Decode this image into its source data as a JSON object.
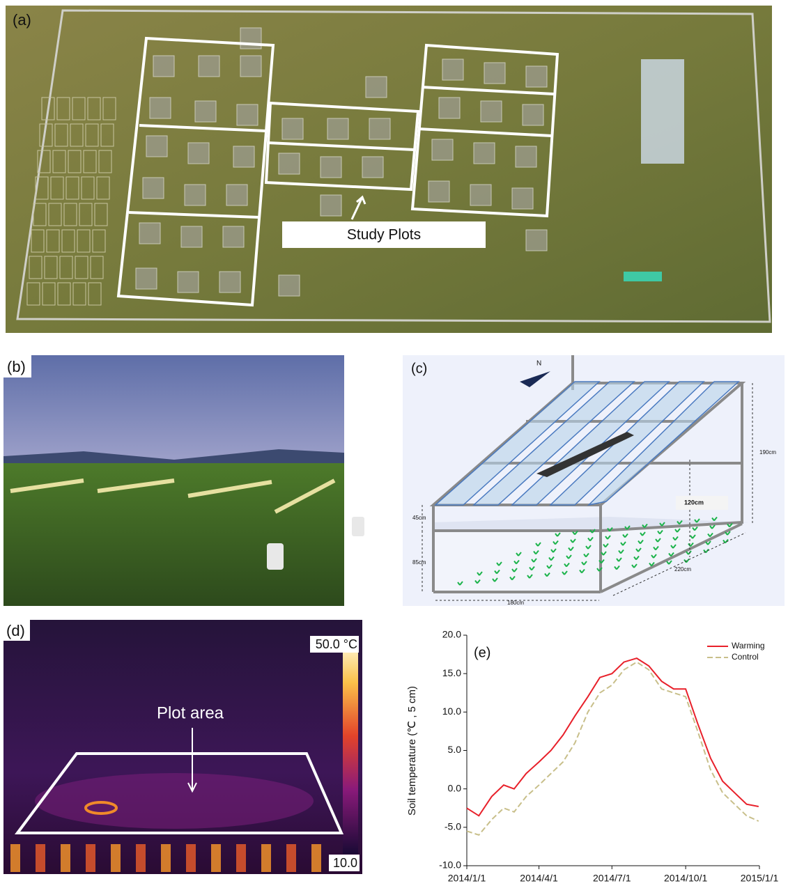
{
  "panels": {
    "a": {
      "label": "(a)",
      "annotation": "Study Plots"
    },
    "b": {
      "label": "(b)"
    },
    "c": {
      "label": "(c)",
      "north": "N",
      "dimensions": [
        "190cm",
        "120cm",
        "45cm",
        "85cm",
        "220cm",
        "180cm"
      ]
    },
    "d": {
      "label": "(d)",
      "annotation": "Plot area",
      "scale_max": "50.0 °C",
      "scale_min": "10.0"
    }
  },
  "chart_data": {
    "type": "line",
    "label": "(e)",
    "y_label": "Soil temperature (℃ , 5 cm)",
    "x": [
      "2014/1/1",
      "2014/1/16",
      "2014/2/1",
      "2014/2/16",
      "2014/3/1",
      "2014/3/16",
      "2014/4/1",
      "2014/4/16",
      "2014/5/1",
      "2014/5/16",
      "2014/6/1",
      "2014/6/16",
      "2014/7/1",
      "2014/7/16",
      "2014/8/1",
      "2014/8/16",
      "2014/9/1",
      "2014/9/16",
      "2014/10/1",
      "2014/10/16",
      "2014/11/1",
      "2014/11/16",
      "2014/12/1",
      "2014/12/16",
      "2014/12/31"
    ],
    "series": [
      {
        "name": "Warming",
        "color": "#e8202a",
        "style": "solid",
        "values": [
          -2.5,
          -3.5,
          -1.0,
          0.5,
          0.0,
          2.0,
          3.5,
          5.0,
          7.0,
          9.5,
          12.0,
          14.5,
          15.0,
          16.5,
          17.0,
          16.0,
          14.0,
          13.0,
          13.0,
          8.5,
          4.0,
          1.0,
          -0.5,
          -2.0,
          -2.3
        ]
      },
      {
        "name": "Control",
        "color": "#c8bf8a",
        "style": "dashed",
        "values": [
          -5.5,
          -6.0,
          -4.0,
          -2.5,
          -3.0,
          -1.0,
          0.5,
          2.0,
          3.5,
          6.0,
          10.0,
          12.5,
          13.5,
          15.5,
          16.5,
          15.5,
          13.0,
          12.5,
          12.0,
          7.5,
          2.5,
          -0.5,
          -2.0,
          -3.5,
          -4.2
        ]
      }
    ],
    "xlim": [
      "2014/1/1",
      "2015/1/1"
    ],
    "xticks": [
      "2014/1/1",
      "2014/4/1",
      "2014/7/1",
      "2014/10/1",
      "2015/1/1"
    ],
    "ylim": [
      -10,
      20
    ],
    "yticks": [
      {
        "value": -10,
        "label": "-10.0"
      },
      {
        "value": -5,
        "label": "-5.0"
      },
      {
        "value": 0,
        "label": "0.0"
      },
      {
        "value": 5,
        "label": "5.0"
      },
      {
        "value": 10,
        "label": "10.0"
      },
      {
        "value": 15,
        "label": "15.0"
      },
      {
        "value": 20,
        "label": "20.0"
      }
    ],
    "legend": "upper right"
  }
}
